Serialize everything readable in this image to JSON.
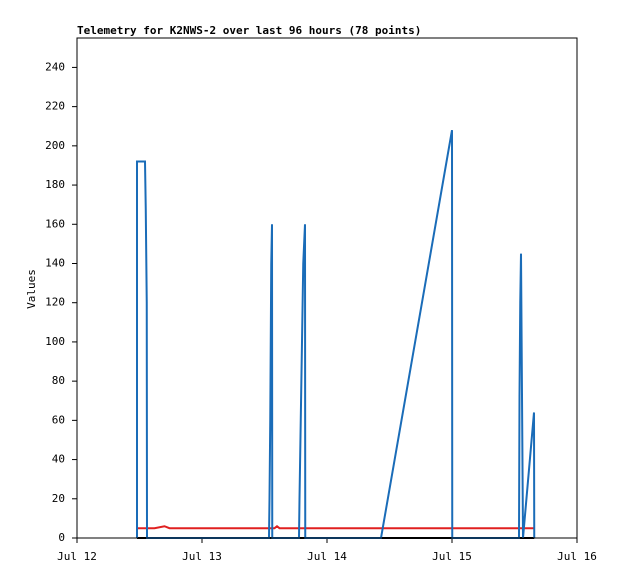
{
  "chart_data": {
    "type": "line",
    "title": "Telemetry for K2NWS-2 over last 96 hours (78 points)",
    "y_label": "Values",
    "xlim": [
      12,
      16
    ],
    "xticks": [
      {
        "value": 12,
        "label": "Jul 12"
      },
      {
        "value": 13,
        "label": "Jul 13"
      },
      {
        "value": 14,
        "label": "Jul 14"
      },
      {
        "value": 15,
        "label": "Jul 15"
      },
      {
        "value": 16,
        "label": "Jul 16"
      }
    ],
    "ylim": [
      0,
      255
    ],
    "yticks": [
      0,
      20,
      40,
      60,
      80,
      100,
      120,
      140,
      160,
      180,
      200,
      220,
      240
    ],
    "grid": false,
    "series": [
      {
        "color": "#000000",
        "x": [
          12.48,
          15.658
        ],
        "values": [
          0,
          0
        ]
      },
      {
        "color": "#e02020",
        "x": [
          12.48,
          12.62,
          12.7,
          12.74,
          13.58,
          13.6,
          13.62,
          15.658
        ],
        "values": [
          5,
          5,
          6,
          5,
          5,
          6,
          5,
          5
        ]
      },
      {
        "color": "#1a6cb8",
        "x": [
          12.48,
          12.48,
          12.544,
          12.55,
          12.558,
          12.56,
          13.536,
          13.54,
          13.546,
          13.55,
          13.554,
          13.56,
          13.562,
          13.776,
          13.78,
          13.79,
          13.8,
          13.81,
          13.824,
          13.826,
          14.432,
          15.0,
          15.002,
          15.536,
          15.54,
          15.546,
          15.552,
          15.568,
          15.656,
          15.658
        ],
        "values": [
          0,
          192,
          192,
          168,
          120,
          0,
          0,
          20,
          60,
          100,
          140,
          160,
          0,
          0,
          20,
          60,
          100,
          140,
          160,
          0,
          0,
          208,
          0,
          0,
          72,
          120,
          145,
          0,
          64,
          0
        ]
      }
    ]
  }
}
